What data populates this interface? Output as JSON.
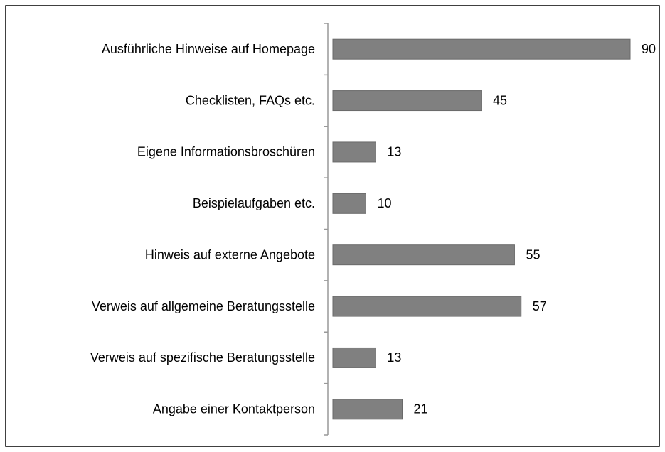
{
  "chart_data": {
    "type": "bar",
    "orientation": "horizontal",
    "categories": [
      "Ausführliche Hinweise auf Homepage",
      "Checklisten, FAQs etc.",
      "Eigene Informationsbroschüren",
      "Beispielaufgaben etc.",
      "Hinweis auf externe Angebote",
      "Verweis auf allgemeine Beratungsstelle",
      "Verweis auf spezifische Beratungsstelle",
      "Angabe einer Kontaktperson"
    ],
    "values": [
      90,
      45,
      13,
      10,
      55,
      57,
      13,
      21
    ],
    "color": "#808080"
  }
}
